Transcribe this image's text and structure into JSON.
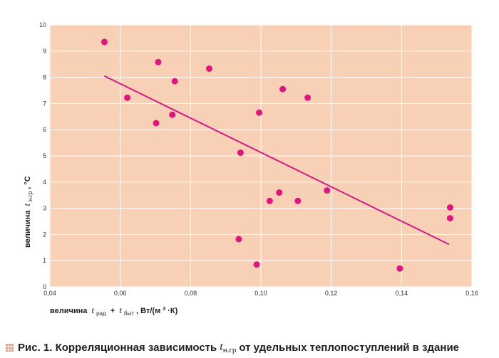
{
  "figure": {
    "caption": {
      "prefix": "Рис. 1.",
      "text_before": "Корреляционная зависимость",
      "var_main": "t",
      "var_sub": "н.гр",
      "text_after": "от удельных теплопоступлений в здание"
    },
    "colors": {
      "plot_background": "#f7d0b5",
      "grid": "#ffffff",
      "points": "#e0157f",
      "trend_line": "#d61a85",
      "caption_bullet": "#e8a07a"
    }
  },
  "chart_data": {
    "type": "scatter",
    "x": [
      0.0555,
      0.062,
      0.0702,
      0.0708,
      0.0748,
      0.0755,
      0.0853,
      0.0937,
      0.0942,
      0.0988,
      0.0995,
      0.1025,
      0.1052,
      0.1062,
      0.1105,
      0.1133,
      0.1188,
      0.1395,
      0.1538,
      0.1538
    ],
    "y": [
      9.35,
      7.22,
      6.25,
      8.58,
      6.57,
      7.85,
      8.33,
      1.82,
      5.12,
      0.85,
      6.65,
      3.28,
      3.6,
      7.55,
      3.28,
      7.22,
      3.68,
      0.7,
      3.03,
      2.62
    ],
    "trend_line": {
      "x": [
        0.0555,
        0.1535
      ],
      "y": [
        8.05,
        1.62
      ]
    },
    "xlim": [
      0.04,
      0.16
    ],
    "ylim": [
      0,
      10
    ],
    "xticks": [
      "0,04",
      "0,06",
      "0,08",
      "0,10",
      "0,12",
      "0,14",
      "0,16"
    ],
    "yticks": [
      "0",
      "1",
      "2",
      "3",
      "4",
      "5",
      "6",
      "7",
      "8",
      "9",
      "10"
    ],
    "ylabel": {
      "prefix": "величина",
      "var": "t",
      "sub": "н.гр",
      "suffix": ", °С"
    },
    "xlabel": {
      "prefix": "величина",
      "var1": "t",
      "sub1": "рад",
      "plus": "+",
      "var2": "t",
      "sub2": "быт",
      "unit_pre": ", Вт/(м",
      "unit_exp": "3",
      "unit_post": "·К)"
    },
    "grid": true
  }
}
